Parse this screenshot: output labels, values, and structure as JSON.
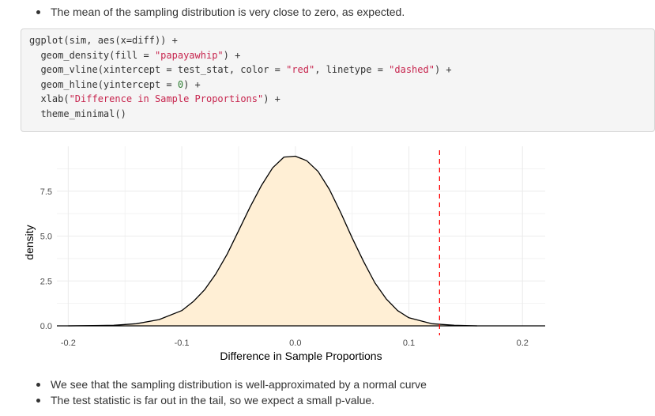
{
  "bullets_top": {
    "items": [
      "The mean of the sampling distribution is very close to zero, as expected."
    ]
  },
  "code": {
    "lines": [
      {
        "parts": [
          {
            "t": "ggplot(sim, aes(x=diff)) +",
            "c": ""
          }
        ]
      },
      {
        "parts": [
          {
            "t": "  geom_density(fill = ",
            "c": ""
          },
          {
            "t": "\"papayawhip\"",
            "c": "str"
          },
          {
            "t": ") +",
            "c": ""
          }
        ]
      },
      {
        "parts": [
          {
            "t": "  geom_vline(xintercept = test_stat, color = ",
            "c": ""
          },
          {
            "t": "\"red\"",
            "c": "str"
          },
          {
            "t": ", linetype = ",
            "c": ""
          },
          {
            "t": "\"dashed\"",
            "c": "str"
          },
          {
            "t": ") +",
            "c": ""
          }
        ]
      },
      {
        "parts": [
          {
            "t": "  geom_hline(yintercept = ",
            "c": ""
          },
          {
            "t": "0",
            "c": "num"
          },
          {
            "t": ") +",
            "c": ""
          }
        ]
      },
      {
        "parts": [
          {
            "t": "  xlab(",
            "c": ""
          },
          {
            "t": "\"Difference in Sample Proportions\"",
            "c": "str"
          },
          {
            "t": ") +",
            "c": ""
          }
        ]
      },
      {
        "parts": [
          {
            "t": "  theme_minimal()",
            "c": ""
          }
        ]
      }
    ]
  },
  "chart_data": {
    "type": "area",
    "xlabel": "Difference in Sample Proportions",
    "ylabel": "density",
    "xlim": [
      -0.21,
      0.22
    ],
    "ylim": [
      0,
      10.0
    ],
    "x_ticks": [
      -0.2,
      -0.1,
      0.0,
      0.1,
      0.2
    ],
    "x_tick_labels": [
      "-0.2",
      "-0.1",
      "0.0",
      "0.1",
      "0.2"
    ],
    "y_ticks": [
      0,
      2.5,
      5.0,
      7.5
    ],
    "y_tick_labels": [
      "0.0",
      "2.5",
      "5.0",
      "7.5"
    ],
    "grid": true,
    "fill_color": "#ffefd5",
    "line_color": "#000000",
    "density": {
      "x": [
        -0.2,
        -0.16,
        -0.14,
        -0.12,
        -0.1,
        -0.09,
        -0.08,
        -0.07,
        -0.06,
        -0.05,
        -0.04,
        -0.03,
        -0.02,
        -0.01,
        0.0,
        0.01,
        0.02,
        0.03,
        0.04,
        0.05,
        0.06,
        0.07,
        0.08,
        0.09,
        0.1,
        0.12,
        0.14,
        0.16
      ],
      "y": [
        0.0,
        0.03,
        0.12,
        0.35,
        0.85,
        1.35,
        2.0,
        2.9,
        4.0,
        5.3,
        6.6,
        7.8,
        8.8,
        9.4,
        9.45,
        9.2,
        8.6,
        7.6,
        6.3,
        4.9,
        3.6,
        2.4,
        1.5,
        0.85,
        0.45,
        0.12,
        0.03,
        0.0
      ]
    },
    "vline": {
      "x": 0.127,
      "color": "#ff0000",
      "linetype": "dashed"
    },
    "hline": {
      "y": 0
    }
  },
  "bullets_bottom": {
    "items": [
      "We see that the sampling distribution is well-approximated by a normal curve",
      "The test statistic is far out in the tail, so we expect a small p-value."
    ]
  }
}
